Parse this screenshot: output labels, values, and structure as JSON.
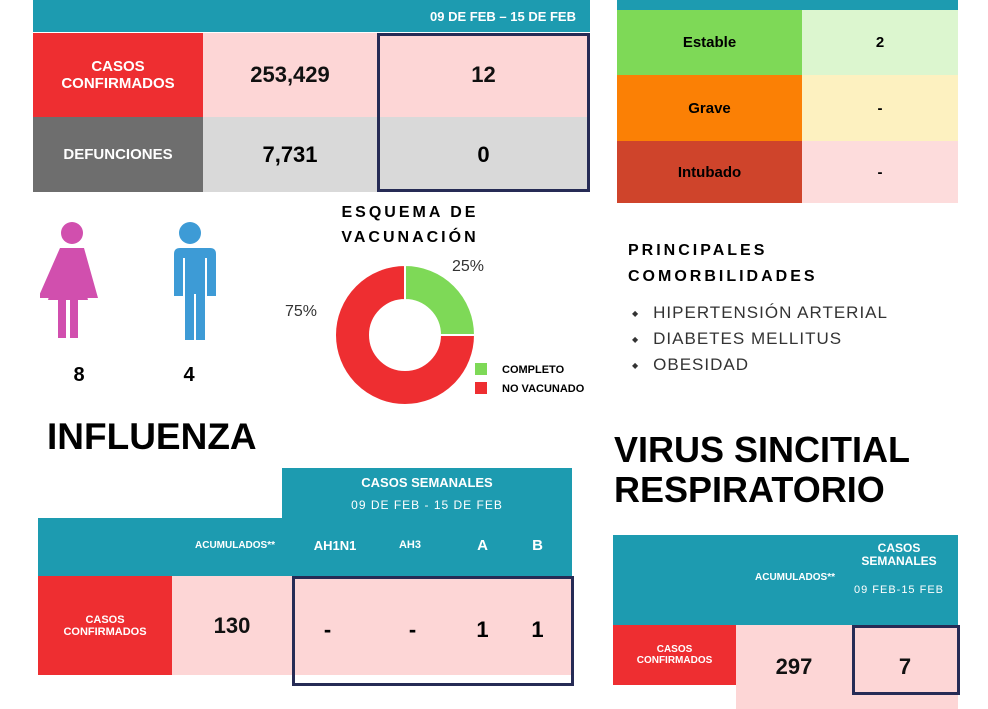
{
  "covid_table": {
    "week_label": "09 DE FEB – 15 DE FEB",
    "rows": [
      {
        "label": "CASOS CONFIRMADOS",
        "accumulated": "253,429",
        "weekly": "12"
      },
      {
        "label": "DEFUNCIONES",
        "accumulated": "7,731",
        "weekly": "0"
      }
    ]
  },
  "status_table": {
    "rows": [
      {
        "label": "Estable",
        "value": "2"
      },
      {
        "label": "Grave",
        "value": "-"
      },
      {
        "label": "Intubado",
        "value": "-"
      }
    ]
  },
  "sex": {
    "female": "8",
    "male": "4"
  },
  "chart_data": {
    "type": "pie",
    "title": "ESQUEMA DE VACUNACIÓN",
    "categories": [
      "COMPLETO",
      "NO VACUNADO"
    ],
    "values": [
      25,
      75
    ],
    "value_labels": [
      "25%",
      "75%"
    ],
    "colors": [
      "#7ed957",
      "#ee2e31"
    ]
  },
  "comorbidities": {
    "title": "PRINCIPALES COMORBILIDADES",
    "items": [
      "HIPERTENSIÓN ARTERIAL",
      "DIABETES MELLITUS",
      "OBESIDAD"
    ]
  },
  "influenza": {
    "title": "INFLUENZA",
    "weekly_header": "CASOS SEMANALES",
    "week_label": "09 DE FEB - 15 DE FEB",
    "columns": [
      "ACUMULADOS**",
      "AH1N1",
      "AH3",
      "A",
      "B"
    ],
    "row": {
      "label": "CASOS CONFIRMADOS",
      "values": [
        "130",
        "-",
        "-",
        "1",
        "1"
      ]
    }
  },
  "vsr": {
    "title": "VIRUS SINCITIAL RESPIRATORIO",
    "accumulated_header": "ACUMULADOS**",
    "weekly_header": "CASOS SEMANALES",
    "week_label": "09 FEB-15 FEB",
    "row": {
      "label": "CASOS CONFIRMADOS",
      "accumulated": "297",
      "weekly": "7"
    }
  }
}
